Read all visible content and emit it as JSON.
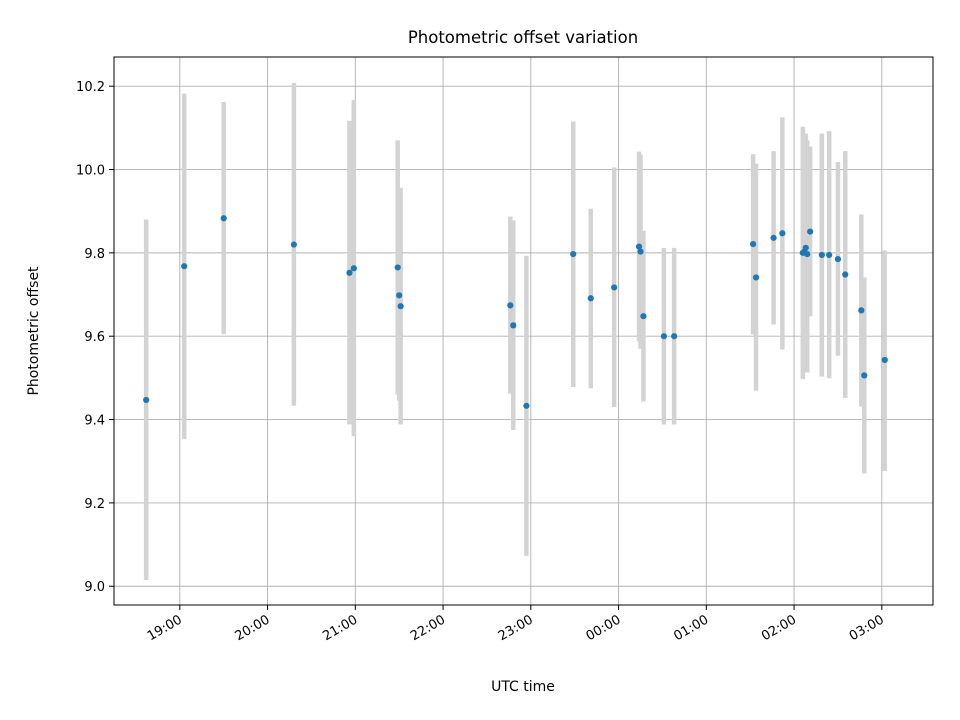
{
  "chart_data": {
    "type": "scatter",
    "title": "Photometric offset variation",
    "xlabel": "UTC time",
    "ylabel": "Photometric offset",
    "xlim": [
      "18:15",
      "03:35"
    ],
    "ylim": [
      8.955,
      10.27
    ],
    "x_ticks": [
      "19:00",
      "20:00",
      "21:00",
      "22:00",
      "23:00",
      "00:00",
      "01:00",
      "02:00",
      "03:00"
    ],
    "y_ticks": [
      "9.0",
      "9.2",
      "9.4",
      "9.6",
      "9.8",
      "10.0",
      "10.2"
    ],
    "grid": true,
    "point_color": "#1f77b4",
    "errorbar_color": "#d3d3d3",
    "points": [
      {
        "x": "18:37",
        "y": 9.447,
        "lo": 9.015,
        "hi": 9.88
      },
      {
        "x": "19:03",
        "y": 9.768,
        "lo": 9.353,
        "hi": 10.182
      },
      {
        "x": "19:30",
        "y": 9.883,
        "lo": 9.605,
        "hi": 10.162
      },
      {
        "x": "20:18",
        "y": 9.82,
        "lo": 9.433,
        "hi": 10.208
      },
      {
        "x": "20:56",
        "y": 9.752,
        "lo": 9.388,
        "hi": 10.117
      },
      {
        "x": "20:59",
        "y": 9.763,
        "lo": 9.36,
        "hi": 10.167
      },
      {
        "x": "21:29",
        "y": 9.765,
        "lo": 9.46,
        "hi": 10.07
      },
      {
        "x": "21:30",
        "y": 9.698,
        "lo": 9.445,
        "hi": 9.95
      },
      {
        "x": "21:31",
        "y": 9.672,
        "lo": 9.388,
        "hi": 9.956
      },
      {
        "x": "22:46",
        "y": 9.674,
        "lo": 9.462,
        "hi": 9.887
      },
      {
        "x": "22:48",
        "y": 9.626,
        "lo": 9.375,
        "hi": 9.878
      },
      {
        "x": "22:57",
        "y": 9.433,
        "lo": 9.073,
        "hi": 9.793
      },
      {
        "x": "23:29",
        "y": 9.797,
        "lo": 9.478,
        "hi": 10.115
      },
      {
        "x": "23:41",
        "y": 9.691,
        "lo": 9.475,
        "hi": 9.906
      },
      {
        "x": "23:57",
        "y": 9.717,
        "lo": 9.43,
        "hi": 10.005
      },
      {
        "x": "00:14",
        "y": 9.815,
        "lo": 9.588,
        "hi": 10.043
      },
      {
        "x": "00:15",
        "y": 9.803,
        "lo": 9.57,
        "hi": 10.036
      },
      {
        "x": "00:17",
        "y": 9.648,
        "lo": 9.443,
        "hi": 9.853
      },
      {
        "x": "00:31",
        "y": 9.6,
        "lo": 9.388,
        "hi": 9.812
      },
      {
        "x": "00:38",
        "y": 9.6,
        "lo": 9.388,
        "hi": 9.812
      },
      {
        "x": "01:32",
        "y": 9.821,
        "lo": 9.604,
        "hi": 10.037
      },
      {
        "x": "01:34",
        "y": 9.741,
        "lo": 9.469,
        "hi": 10.014
      },
      {
        "x": "01:46",
        "y": 9.836,
        "lo": 9.628,
        "hi": 10.044
      },
      {
        "x": "01:52",
        "y": 9.847,
        "lo": 9.568,
        "hi": 10.125
      },
      {
        "x": "02:06",
        "y": 9.8,
        "lo": 9.497,
        "hi": 10.103
      },
      {
        "x": "02:07",
        "y": 9.803,
        "lo": 9.525,
        "hi": 10.08
      },
      {
        "x": "02:08",
        "y": 9.812,
        "lo": 9.537,
        "hi": 10.086
      },
      {
        "x": "02:09",
        "y": 9.797,
        "lo": 9.513,
        "hi": 10.07
      },
      {
        "x": "02:11",
        "y": 9.851,
        "lo": 9.648,
        "hi": 10.055
      },
      {
        "x": "02:19",
        "y": 9.795,
        "lo": 9.503,
        "hi": 10.086
      },
      {
        "x": "02:24",
        "y": 9.795,
        "lo": 9.499,
        "hi": 10.092
      },
      {
        "x": "02:30",
        "y": 9.785,
        "lo": 9.553,
        "hi": 10.018
      },
      {
        "x": "02:35",
        "y": 9.748,
        "lo": 9.452,
        "hi": 10.044
      },
      {
        "x": "02:46",
        "y": 9.662,
        "lo": 9.431,
        "hi": 9.892
      },
      {
        "x": "02:48",
        "y": 9.506,
        "lo": 9.271,
        "hi": 9.741
      },
      {
        "x": "03:02",
        "y": 9.543,
        "lo": 9.277,
        "hi": 9.806
      }
    ]
  }
}
